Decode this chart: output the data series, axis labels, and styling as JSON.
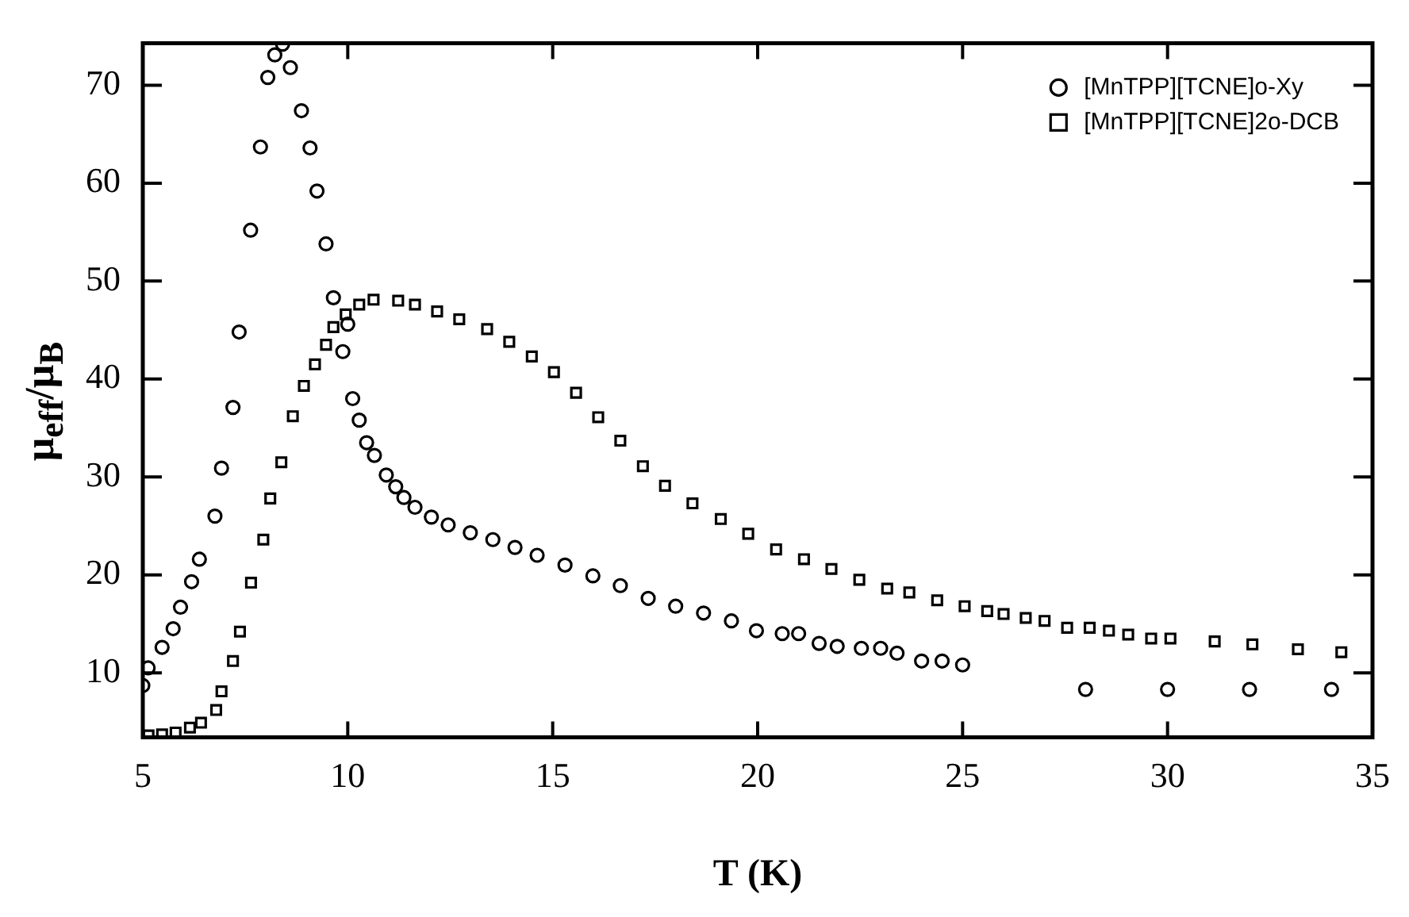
{
  "chart_data": {
    "type": "scatter",
    "xlabel": "T (K)",
    "ylabel": "μ$_{eff}$/μ$_{B}$",
    "xlim": [
      5,
      35
    ],
    "xticks": [
      5,
      10,
      15,
      20,
      25,
      30,
      35
    ],
    "ylim": [
      3.4,
      74.3
    ],
    "yticks": [
      10,
      20,
      30,
      40,
      50,
      60,
      70
    ],
    "grid": false,
    "legend": "top right",
    "series": [
      {
        "name": "[MnTPP][TCNE]o-Xy",
        "color": "#000000",
        "marker": "circle",
        "x": [
          5.0,
          5.13,
          5.47,
          5.74,
          5.92,
          6.19,
          6.38,
          6.76,
          6.92,
          7.2,
          7.35,
          7.63,
          7.87,
          8.05,
          8.22,
          8.41,
          8.6,
          8.87,
          9.08,
          9.25,
          9.47,
          9.65,
          9.88,
          10.0,
          10.12,
          10.28,
          10.46,
          10.65,
          10.94,
          11.17,
          11.37,
          11.64,
          12.04,
          12.45,
          12.99,
          13.54,
          14.08,
          14.62,
          15.3,
          15.98,
          16.65,
          17.33,
          18.0,
          18.68,
          19.36,
          19.97,
          20.6,
          21.0,
          21.5,
          21.94,
          22.53,
          23.0,
          23.4,
          24.0,
          24.5,
          25.0,
          28.0,
          30.0,
          32.0,
          34.0
        ],
        "values": [
          8.7,
          10.5,
          12.6,
          14.5,
          16.7,
          19.3,
          21.6,
          26.0,
          30.9,
          37.1,
          44.8,
          55.2,
          63.7,
          70.8,
          73.1,
          74.2,
          71.8,
          67.4,
          63.6,
          59.2,
          53.8,
          48.3,
          42.8,
          45.6,
          38.0,
          35.8,
          33.5,
          32.2,
          30.2,
          29.0,
          27.9,
          26.9,
          25.9,
          25.1,
          24.3,
          23.6,
          22.8,
          22.0,
          21.0,
          19.9,
          18.9,
          17.6,
          16.8,
          16.1,
          15.3,
          14.3,
          14.0,
          14.0,
          13.0,
          12.7,
          12.5,
          12.5,
          12.0,
          11.2,
          11.2,
          10.8,
          8.3,
          8.3,
          8.3,
          8.3
        ]
      },
      {
        "name": "[MnTPP][TCNE]2o-DCB",
        "color": "#000000",
        "marker": "square",
        "x": [
          5.14,
          5.47,
          5.8,
          6.15,
          6.42,
          6.79,
          6.92,
          7.2,
          7.37,
          7.64,
          7.94,
          8.11,
          8.38,
          8.66,
          8.93,
          9.2,
          9.47,
          9.65,
          9.95,
          10.28,
          10.63,
          11.23,
          11.64,
          12.18,
          12.72,
          13.4,
          13.94,
          14.49,
          15.03,
          15.57,
          16.11,
          16.65,
          17.2,
          17.74,
          18.41,
          19.1,
          19.77,
          20.45,
          21.13,
          21.8,
          22.48,
          23.16,
          23.7,
          24.38,
          25.05,
          25.6,
          26.0,
          26.54,
          27.0,
          27.55,
          28.1,
          28.57,
          29.04,
          29.6,
          30.07,
          31.15,
          32.07,
          33.18,
          34.24
        ],
        "values": [
          3.6,
          3.7,
          3.9,
          4.4,
          4.9,
          6.2,
          8.1,
          11.2,
          14.2,
          19.2,
          23.6,
          27.8,
          31.5,
          36.2,
          39.3,
          41.5,
          43.5,
          45.3,
          46.6,
          47.6,
          48.1,
          48.0,
          47.6,
          46.9,
          46.1,
          45.1,
          43.8,
          42.3,
          40.7,
          38.6,
          36.1,
          33.7,
          31.1,
          29.1,
          27.3,
          25.7,
          24.2,
          22.6,
          21.6,
          20.6,
          19.5,
          18.6,
          18.2,
          17.4,
          16.8,
          16.3,
          16.0,
          15.6,
          15.3,
          14.6,
          14.6,
          14.3,
          13.9,
          13.5,
          13.5,
          13.2,
          12.9,
          12.4,
          12.1
        ]
      }
    ]
  }
}
